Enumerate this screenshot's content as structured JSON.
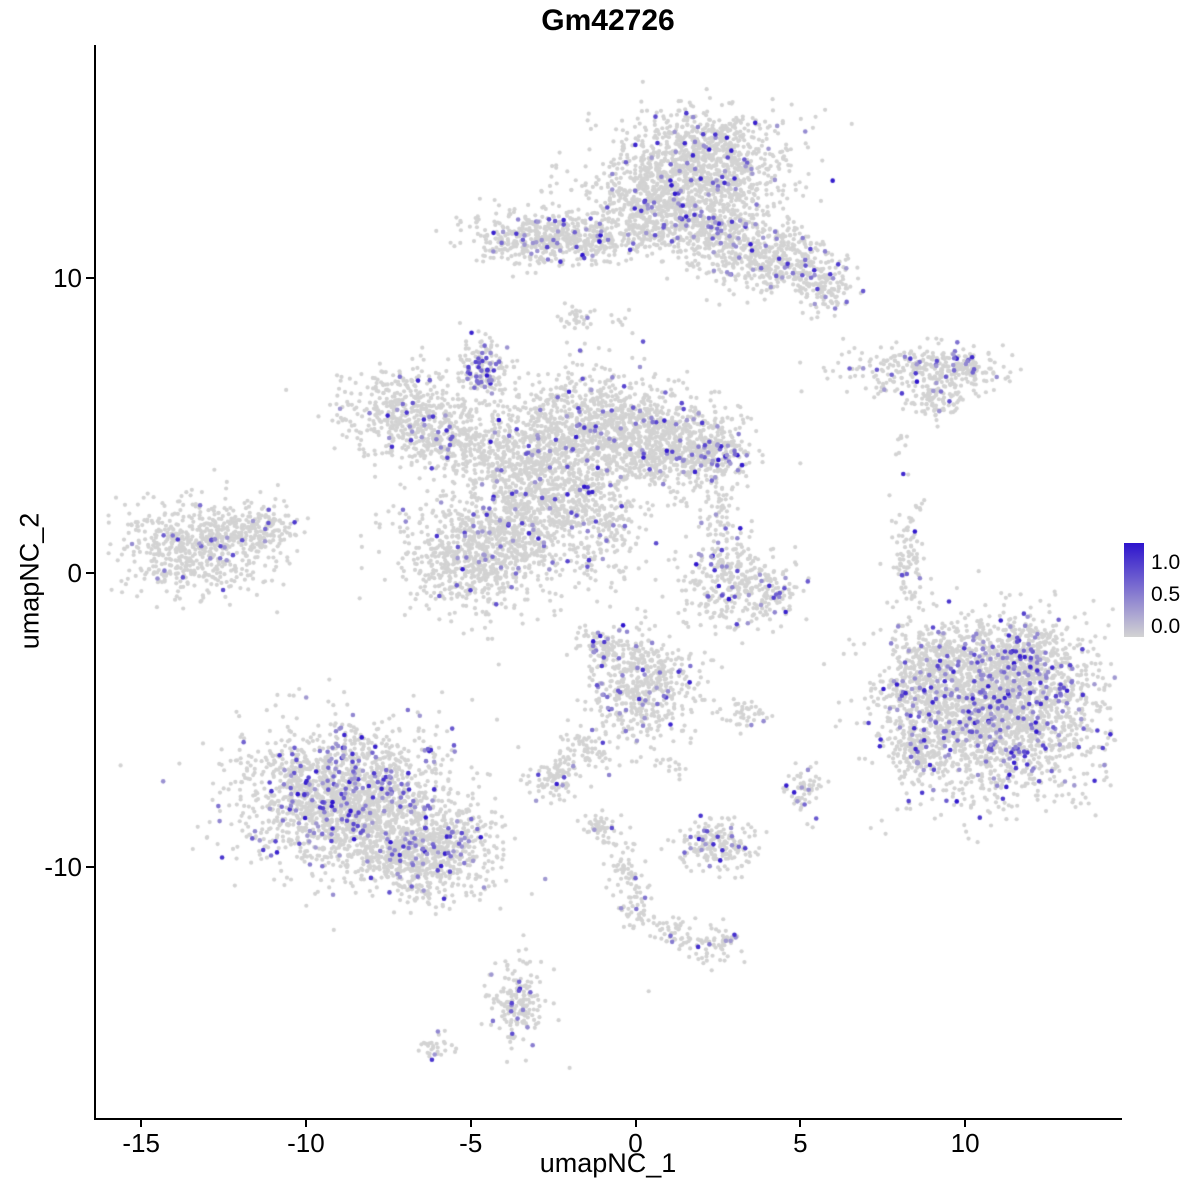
{
  "title": "Gm42726",
  "chart_data": {
    "type": "scatter",
    "title": "Gm42726",
    "xlabel": "umapNC_1",
    "ylabel": "umapNC_2",
    "xlim": [
      -16.4,
      14.7
    ],
    "ylim": [
      -18.5,
      17.9
    ],
    "x_ticks": [
      "-15",
      "-10",
      "-5",
      "0",
      "5",
      "10"
    ],
    "x_tick_values": [
      -15,
      -10,
      -5,
      0,
      5,
      10
    ],
    "y_ticks": [
      "10",
      "0",
      "-10"
    ],
    "y_tick_values": [
      10,
      0,
      -10
    ],
    "grid": "off",
    "legend": {
      "position": "right",
      "labels": [
        "1.0",
        "0.5",
        "0.0"
      ],
      "values": [
        1.0,
        0.5,
        0.0
      ]
    },
    "colors": {
      "low": "#d3d3d3",
      "high": "#2d14cd",
      "axis": "#000000"
    },
    "point_radius": 2.1,
    "highlight_radius": 2.3,
    "clusters": [
      {
        "x": 2.1,
        "y": 14.0,
        "sx": 1.25,
        "sy": 0.85,
        "n": 850,
        "f": 0.06
      },
      {
        "x": 1.0,
        "y": 12.6,
        "sx": 1.5,
        "sy": 0.8,
        "n": 600,
        "f": 0.06
      },
      {
        "x": 2.6,
        "y": 11.4,
        "sx": 0.9,
        "sy": 0.7,
        "n": 350,
        "f": 0.08
      },
      {
        "x": 4.3,
        "y": 10.6,
        "sx": 0.9,
        "sy": 0.55,
        "n": 280,
        "f": 0.08
      },
      {
        "x": 5.6,
        "y": 9.8,
        "sx": 0.55,
        "sy": 0.45,
        "n": 140,
        "f": 0.1
      },
      {
        "x": -2.9,
        "y": 11.3,
        "sx": 1.05,
        "sy": 0.45,
        "n": 380,
        "f": 0.09
      },
      {
        "x": -1.1,
        "y": 11.3,
        "sx": 0.9,
        "sy": 0.3,
        "n": 130,
        "f": 0.05
      },
      {
        "x": 0.2,
        "y": 12.2,
        "sx": 0.5,
        "sy": 0.7,
        "n": 120,
        "f": 0.04
      },
      {
        "x": -1.7,
        "y": 8.7,
        "sx": 0.3,
        "sy": 0.25,
        "n": 30,
        "f": 0.03
      },
      {
        "x": -0.4,
        "y": 8.4,
        "sx": 0.2,
        "sy": 0.2,
        "n": 8,
        "f": 0
      },
      {
        "x": 8.6,
        "y": 6.8,
        "sx": 1.2,
        "sy": 0.4,
        "n": 240,
        "f": 0.1
      },
      {
        "x": 9.9,
        "y": 7.0,
        "sx": 0.5,
        "sy": 0.3,
        "n": 80,
        "f": 0.12
      },
      {
        "x": 9.1,
        "y": 5.8,
        "sx": 0.45,
        "sy": 0.3,
        "n": 70,
        "f": 0.04
      },
      {
        "x": 8.1,
        "y": 4.4,
        "sx": 0.15,
        "sy": 0.3,
        "n": 8,
        "f": 0
      },
      {
        "x": -6.9,
        "y": 5.4,
        "sx": 1.0,
        "sy": 0.75,
        "n": 420,
        "f": 0.05
      },
      {
        "x": -5.4,
        "y": 4.5,
        "sx": 0.8,
        "sy": 0.6,
        "n": 280,
        "f": 0.05
      },
      {
        "x": -4.6,
        "y": 6.9,
        "sx": 0.35,
        "sy": 0.5,
        "n": 120,
        "f": 0.3
      },
      {
        "x": -1.6,
        "y": 4.9,
        "sx": 1.35,
        "sy": 1.0,
        "n": 900,
        "f": 0.05
      },
      {
        "x": 0.7,
        "y": 4.4,
        "sx": 1.0,
        "sy": 0.85,
        "n": 520,
        "f": 0.06
      },
      {
        "x": 2.2,
        "y": 4.1,
        "sx": 0.65,
        "sy": 0.6,
        "n": 280,
        "f": 0.12
      },
      {
        "x": -3.3,
        "y": 3.3,
        "sx": 0.95,
        "sy": 0.8,
        "n": 420,
        "f": 0.05
      },
      {
        "x": -4.9,
        "y": 0.6,
        "sx": 1.15,
        "sy": 0.95,
        "n": 700,
        "f": 0.05
      },
      {
        "x": -3.5,
        "y": 1.4,
        "sx": 0.7,
        "sy": 0.7,
        "n": 260,
        "f": 0.05
      },
      {
        "x": -1.9,
        "y": 2.3,
        "sx": 0.6,
        "sy": 0.7,
        "n": 200,
        "f": 0.04
      },
      {
        "x": -0.7,
        "y": 1.6,
        "sx": 0.5,
        "sy": 0.9,
        "n": 110,
        "f": 0.05
      },
      {
        "x": -1.4,
        "y": 0.6,
        "sx": 0.3,
        "sy": 0.4,
        "n": 40,
        "f": 0.1
      },
      {
        "x": -13.3,
        "y": 0.9,
        "sx": 1.15,
        "sy": 0.8,
        "n": 620,
        "f": 0.04
      },
      {
        "x": -11.3,
        "y": 1.6,
        "sx": 0.6,
        "sy": 0.35,
        "n": 110,
        "f": 0.03
      },
      {
        "x": 2.9,
        "y": -0.4,
        "sx": 0.75,
        "sy": 0.85,
        "n": 270,
        "f": 0.1
      },
      {
        "x": 2.6,
        "y": 1.8,
        "sx": 0.3,
        "sy": 0.7,
        "n": 60,
        "f": 0.05
      },
      {
        "x": 4.2,
        "y": -0.7,
        "sx": 0.4,
        "sy": 0.4,
        "n": 70,
        "f": 0.15
      },
      {
        "x": 8.3,
        "y": 0.3,
        "sx": 0.25,
        "sy": 1.0,
        "n": 90,
        "f": 0.05
      },
      {
        "x": 8.6,
        "y": 2.2,
        "sx": 0.15,
        "sy": 0.2,
        "n": 6,
        "f": 0
      },
      {
        "x": 10.9,
        "y": -4.7,
        "sx": 1.6,
        "sy": 1.4,
        "n": 2000,
        "f": 0.13
      },
      {
        "x": 11.6,
        "y": -2.7,
        "sx": 0.9,
        "sy": 0.6,
        "n": 280,
        "f": 0.12
      },
      {
        "x": 9.3,
        "y": -2.9,
        "sx": 0.6,
        "sy": 0.5,
        "n": 160,
        "f": 0.08
      },
      {
        "x": 8.3,
        "y": -3.9,
        "sx": 0.45,
        "sy": 0.5,
        "n": 130,
        "f": 0.1
      },
      {
        "x": 8.5,
        "y": -6.1,
        "sx": 0.4,
        "sy": 0.5,
        "n": 110,
        "f": 0.12
      },
      {
        "x": 0.2,
        "y": -3.8,
        "sx": 0.85,
        "sy": 0.95,
        "n": 480,
        "f": 0.09
      },
      {
        "x": -1.0,
        "y": -2.5,
        "sx": 0.35,
        "sy": 0.3,
        "n": 70,
        "f": 0.15
      },
      {
        "x": -1.4,
        "y": -5.9,
        "sx": 0.5,
        "sy": 0.4,
        "n": 70,
        "f": 0.03
      },
      {
        "x": -2.5,
        "y": -6.9,
        "sx": 0.4,
        "sy": 0.35,
        "n": 90,
        "f": 0.05
      },
      {
        "x": 1.1,
        "y": -6.6,
        "sx": 0.25,
        "sy": 0.2,
        "n": 15,
        "f": 0
      },
      {
        "x": 3.2,
        "y": -4.9,
        "sx": 0.35,
        "sy": 0.28,
        "n": 40,
        "f": 0.05
      },
      {
        "x": -8.7,
        "y": -7.7,
        "sx": 1.55,
        "sy": 1.25,
        "n": 1700,
        "f": 0.12
      },
      {
        "x": -5.8,
        "y": -9.4,
        "sx": 0.95,
        "sy": 0.75,
        "n": 420,
        "f": 0.1
      },
      {
        "x": -7.2,
        "y": -9.6,
        "sx": 0.6,
        "sy": 0.5,
        "n": 160,
        "f": 0.1
      },
      {
        "x": -6.3,
        "y": -10.9,
        "sx": 0.55,
        "sy": 0.4,
        "n": 40,
        "f": 0.05
      },
      {
        "x": 5.1,
        "y": -7.4,
        "sx": 0.3,
        "sy": 0.4,
        "n": 50,
        "f": 0.15
      },
      {
        "x": 2.5,
        "y": -9.3,
        "sx": 0.55,
        "sy": 0.45,
        "n": 170,
        "f": 0.12
      },
      {
        "x": -1.0,
        "y": -8.7,
        "sx": 0.3,
        "sy": 0.3,
        "n": 50,
        "f": 0.04
      },
      {
        "x": -0.3,
        "y": -10.0,
        "sx": 0.3,
        "sy": 0.5,
        "n": 55,
        "f": 0.04
      },
      {
        "x": 0.1,
        "y": -11.3,
        "sx": 0.3,
        "sy": 0.4,
        "n": 45,
        "f": 0.04
      },
      {
        "x": 1.2,
        "y": -12.2,
        "sx": 0.4,
        "sy": 0.3,
        "n": 40,
        "f": 0.04
      },
      {
        "x": 2.4,
        "y": -12.7,
        "sx": 0.4,
        "sy": 0.3,
        "n": 60,
        "f": 0.1
      },
      {
        "x": -3.6,
        "y": -14.6,
        "sx": 0.35,
        "sy": 0.7,
        "n": 170,
        "f": 0.08
      },
      {
        "x": -6.1,
        "y": -16.1,
        "sx": 0.3,
        "sy": 0.22,
        "n": 28,
        "f": 0.1
      }
    ],
    "singles": [
      [
        -10.6,
        6.2
      ],
      [
        -4.7,
        -10.9
      ],
      [
        -4.1,
        -11.4
      ],
      [
        -3.4,
        -12.3
      ],
      [
        -3.2,
        -13.2
      ],
      [
        -2.0,
        -16.8
      ],
      [
        0.4,
        -14.2
      ]
    ]
  }
}
